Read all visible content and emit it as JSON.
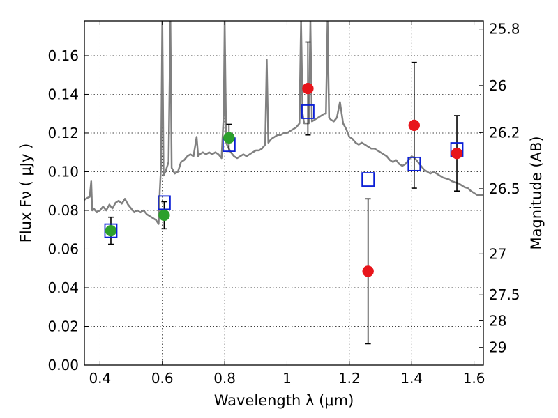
{
  "chart_data": {
    "type": "scatter",
    "xlabel": "Wavelength  λ (μm)",
    "ylabel": "Flux  Fν  ( μJy )",
    "ylabel_right": "Magnitude (AB)",
    "xlim": [
      0.35,
      1.63
    ],
    "ylim": [
      0.0,
      0.178
    ],
    "x_ticks": [
      0.4,
      0.6,
      0.8,
      1.0,
      1.2,
      1.4,
      1.6
    ],
    "x_tick_labels": [
      "0.4",
      "0.6",
      "0.8",
      "1",
      "1.2",
      "1.4",
      "1.6"
    ],
    "y_ticks": [
      0.0,
      0.02,
      0.04,
      0.06,
      0.08,
      0.1,
      0.12,
      0.14,
      0.16
    ],
    "y_tick_labels": [
      "0.00",
      "0.02",
      "0.04",
      "0.06",
      "0.08",
      "0.10",
      "0.12",
      "0.14",
      "0.16"
    ],
    "right_ticks": [
      {
        "mag": 25.8,
        "label": "25.8"
      },
      {
        "mag": 26.0,
        "label": "26"
      },
      {
        "mag": 26.2,
        "label": "26.2"
      },
      {
        "mag": 26.5,
        "label": "26.5"
      },
      {
        "mag": 27.0,
        "label": "27"
      },
      {
        "mag": 27.5,
        "label": "27.5"
      },
      {
        "mag": 28.0,
        "label": "28"
      },
      {
        "mag": 29.0,
        "label": "29"
      }
    ],
    "grid": true,
    "colors": {
      "observed_hst": "#2ca02c",
      "observed_nir": "#e8151b",
      "model": "#0a1ed6",
      "template": "#808080",
      "errorbar": "#000000"
    },
    "observed_points": [
      {
        "x": 0.435,
        "y": 0.0695,
        "err": 0.007,
        "color": "green"
      },
      {
        "x": 0.606,
        "y": 0.0775,
        "err": 0.007,
        "color": "green"
      },
      {
        "x": 0.814,
        "y": 0.1175,
        "err": 0.007,
        "color": "green"
      },
      {
        "x": 1.067,
        "y": 0.143,
        "err": 0.024,
        "color": "red"
      },
      {
        "x": 1.26,
        "y": 0.0485,
        "err": 0.0375,
        "color": "red"
      },
      {
        "x": 1.408,
        "y": 0.124,
        "err": 0.0325,
        "color": "red"
      },
      {
        "x": 1.545,
        "y": 0.1095,
        "err": 0.0195,
        "color": "red"
      }
    ],
    "model_points": [
      {
        "x": 0.435,
        "y": 0.0695
      },
      {
        "x": 0.606,
        "y": 0.084
      },
      {
        "x": 0.814,
        "y": 0.114
      },
      {
        "x": 1.067,
        "y": 0.131
      },
      {
        "x": 1.26,
        "y": 0.096
      },
      {
        "x": 1.408,
        "y": 0.104
      },
      {
        "x": 1.545,
        "y": 0.1115
      }
    ],
    "template_spectrum": [
      [
        0.35,
        0.0855
      ],
      [
        0.36,
        0.0865
      ],
      [
        0.367,
        0.087
      ],
      [
        0.372,
        0.095
      ],
      [
        0.375,
        0.08
      ],
      [
        0.38,
        0.081
      ],
      [
        0.39,
        0.079
      ],
      [
        0.4,
        0.08
      ],
      [
        0.41,
        0.082
      ],
      [
        0.42,
        0.08
      ],
      [
        0.43,
        0.083
      ],
      [
        0.44,
        0.081
      ],
      [
        0.45,
        0.084
      ],
      [
        0.46,
        0.085
      ],
      [
        0.47,
        0.0835
      ],
      [
        0.48,
        0.086
      ],
      [
        0.49,
        0.083
      ],
      [
        0.5,
        0.081
      ],
      [
        0.51,
        0.079
      ],
      [
        0.52,
        0.08
      ],
      [
        0.53,
        0.079
      ],
      [
        0.54,
        0.08
      ],
      [
        0.55,
        0.078
      ],
      [
        0.56,
        0.077
      ],
      [
        0.57,
        0.076
      ],
      [
        0.58,
        0.075
      ],
      [
        0.588,
        0.073
      ],
      [
        0.592,
        0.09
      ],
      [
        0.596,
        0.103
      ],
      [
        0.6,
        0.178
      ],
      [
        0.604,
        0.098
      ],
      [
        0.61,
        0.1
      ],
      [
        0.62,
        0.105
      ],
      [
        0.626,
        0.178
      ],
      [
        0.63,
        0.102
      ],
      [
        0.64,
        0.099
      ],
      [
        0.65,
        0.1
      ],
      [
        0.66,
        0.105
      ],
      [
        0.67,
        0.106
      ],
      [
        0.68,
        0.108
      ],
      [
        0.69,
        0.109
      ],
      [
        0.7,
        0.108
      ],
      [
        0.71,
        0.118
      ],
      [
        0.715,
        0.108
      ],
      [
        0.72,
        0.109
      ],
      [
        0.73,
        0.11
      ],
      [
        0.74,
        0.109
      ],
      [
        0.75,
        0.11
      ],
      [
        0.76,
        0.109
      ],
      [
        0.77,
        0.11
      ],
      [
        0.78,
        0.109
      ],
      [
        0.79,
        0.107
      ],
      [
        0.797,
        0.13
      ],
      [
        0.8,
        0.178
      ],
      [
        0.805,
        0.115
      ],
      [
        0.81,
        0.113
      ],
      [
        0.82,
        0.11
      ],
      [
        0.83,
        0.108
      ],
      [
        0.84,
        0.107
      ],
      [
        0.85,
        0.108
      ],
      [
        0.86,
        0.109
      ],
      [
        0.87,
        0.108
      ],
      [
        0.88,
        0.109
      ],
      [
        0.89,
        0.11
      ],
      [
        0.9,
        0.111
      ],
      [
        0.91,
        0.111
      ],
      [
        0.92,
        0.112
      ],
      [
        0.93,
        0.114
      ],
      [
        0.935,
        0.158
      ],
      [
        0.94,
        0.115
      ],
      [
        0.95,
        0.117
      ],
      [
        0.96,
        0.118
      ],
      [
        0.97,
        0.119
      ],
      [
        0.98,
        0.119
      ],
      [
        0.99,
        0.12
      ],
      [
        1.0,
        0.12
      ],
      [
        1.01,
        0.121
      ],
      [
        1.02,
        0.122
      ],
      [
        1.03,
        0.123
      ],
      [
        1.04,
        0.125
      ],
      [
        1.045,
        0.178
      ],
      [
        1.05,
        0.13
      ],
      [
        1.055,
        0.125
      ],
      [
        1.06,
        0.125
      ],
      [
        1.07,
        0.125
      ],
      [
        1.075,
        0.178
      ],
      [
        1.08,
        0.126
      ],
      [
        1.09,
        0.127
      ],
      [
        1.1,
        0.128
      ],
      [
        1.11,
        0.129
      ],
      [
        1.12,
        0.13
      ],
      [
        1.125,
        0.13
      ],
      [
        1.13,
        0.178
      ],
      [
        1.135,
        0.128
      ],
      [
        1.14,
        0.127
      ],
      [
        1.15,
        0.126
      ],
      [
        1.16,
        0.128
      ],
      [
        1.17,
        0.136
      ],
      [
        1.18,
        0.125
      ],
      [
        1.19,
        0.122
      ],
      [
        1.2,
        0.118
      ],
      [
        1.21,
        0.117
      ],
      [
        1.22,
        0.115
      ],
      [
        1.23,
        0.114
      ],
      [
        1.24,
        0.115
      ],
      [
        1.25,
        0.114
      ],
      [
        1.26,
        0.113
      ],
      [
        1.27,
        0.112
      ],
      [
        1.28,
        0.112
      ],
      [
        1.29,
        0.111
      ],
      [
        1.3,
        0.11
      ],
      [
        1.31,
        0.109
      ],
      [
        1.32,
        0.108
      ],
      [
        1.33,
        0.106
      ],
      [
        1.34,
        0.105
      ],
      [
        1.35,
        0.106
      ],
      [
        1.36,
        0.104
      ],
      [
        1.37,
        0.103
      ],
      [
        1.38,
        0.104
      ],
      [
        1.39,
        0.106
      ],
      [
        1.4,
        0.108
      ],
      [
        1.41,
        0.107
      ],
      [
        1.42,
        0.105
      ],
      [
        1.43,
        0.103
      ],
      [
        1.44,
        0.101
      ],
      [
        1.45,
        0.1
      ],
      [
        1.46,
        0.099
      ],
      [
        1.47,
        0.1
      ],
      [
        1.48,
        0.099
      ],
      [
        1.49,
        0.098
      ],
      [
        1.5,
        0.097
      ],
      [
        1.51,
        0.0965
      ],
      [
        1.52,
        0.096
      ],
      [
        1.53,
        0.095
      ],
      [
        1.54,
        0.0945
      ],
      [
        1.55,
        0.094
      ],
      [
        1.56,
        0.093
      ],
      [
        1.57,
        0.092
      ],
      [
        1.58,
        0.0915
      ],
      [
        1.59,
        0.09
      ],
      [
        1.6,
        0.089
      ],
      [
        1.61,
        0.088
      ],
      [
        1.62,
        0.088
      ],
      [
        1.63,
        0.088
      ]
    ]
  }
}
